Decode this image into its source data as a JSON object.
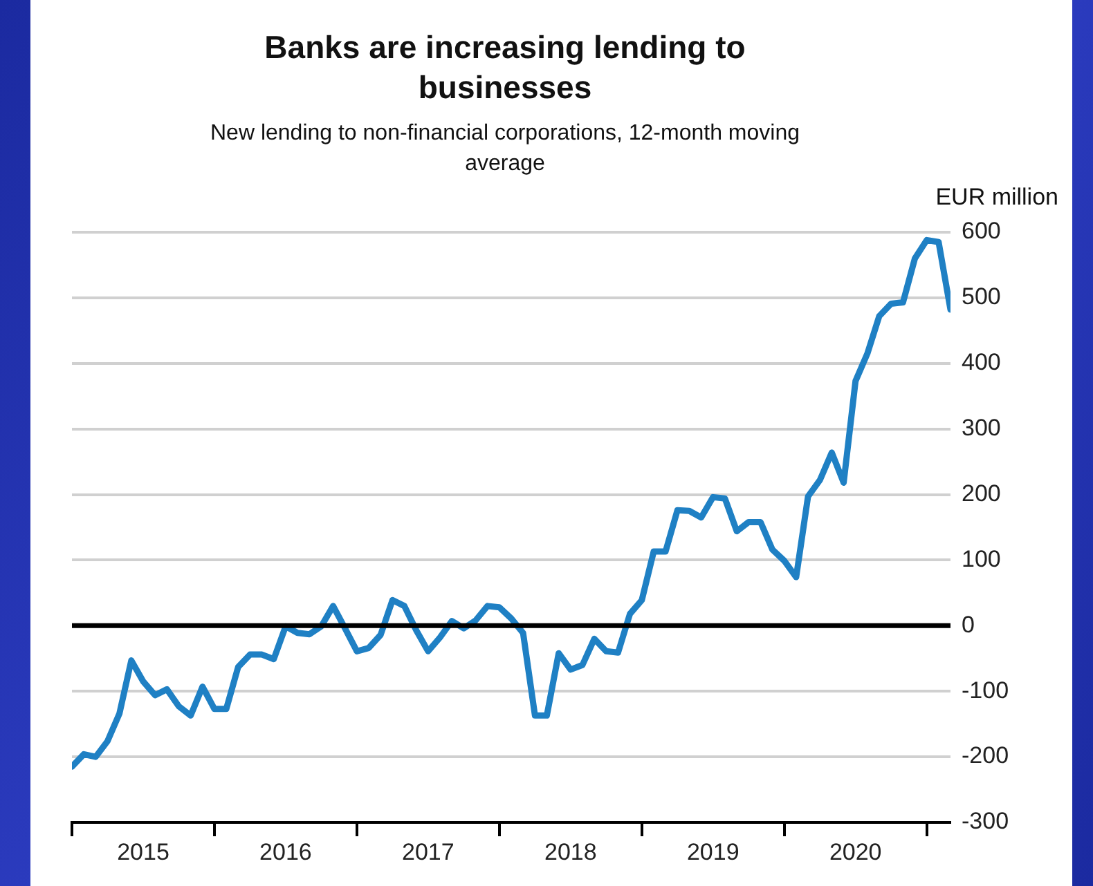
{
  "chart_data": {
    "type": "line",
    "title": "Banks are increasing lending to businesses",
    "subtitle": "New lending to non-financial corporations, 12-month moving average",
    "ylabel": "EUR million",
    "x": [
      "2015-01",
      "2015-02",
      "2015-03",
      "2015-04",
      "2015-05",
      "2015-06",
      "2015-07",
      "2015-08",
      "2015-09",
      "2015-10",
      "2015-11",
      "2015-12",
      "2016-01",
      "2016-02",
      "2016-03",
      "2016-04",
      "2016-05",
      "2016-06",
      "2016-07",
      "2016-08",
      "2016-09",
      "2016-10",
      "2016-11",
      "2016-12",
      "2017-01",
      "2017-02",
      "2017-03",
      "2017-04",
      "2017-05",
      "2017-06",
      "2017-07",
      "2017-08",
      "2017-09",
      "2017-10",
      "2017-11",
      "2017-12",
      "2018-01",
      "2018-02",
      "2018-03",
      "2018-04",
      "2018-05",
      "2018-06",
      "2018-07",
      "2018-08",
      "2018-09",
      "2018-10",
      "2018-11",
      "2018-12",
      "2019-01",
      "2019-02",
      "2019-03",
      "2019-04",
      "2019-05",
      "2019-06",
      "2019-07",
      "2019-08",
      "2019-09",
      "2019-10",
      "2019-11",
      "2019-12",
      "2020-01",
      "2020-02",
      "2020-03",
      "2020-04",
      "2020-05",
      "2020-06",
      "2020-07",
      "2020-08",
      "2020-09",
      "2020-10",
      "2020-11",
      "2020-12",
      "2021-01",
      "2021-02",
      "2021-03"
    ],
    "series": [
      {
        "color": "#1f80c4",
        "values": [
          -215,
          -196,
          -200,
          -176,
          -134,
          -53,
          -85,
          -106,
          -97,
          -123,
          -137,
          -93,
          -127,
          -127,
          -63,
          -44,
          -44,
          -51,
          -1,
          -11,
          -13,
          -1,
          30,
          -4,
          -39,
          -34,
          -14,
          39,
          30,
          -7,
          -39,
          -18,
          7,
          -4,
          8,
          30,
          28,
          11,
          -11,
          -137,
          -137,
          -42,
          -67,
          -60,
          -20,
          -39,
          -41,
          18,
          39,
          113,
          113,
          176,
          175,
          165,
          196,
          194,
          144,
          158,
          158,
          116,
          99,
          74,
          197,
          222,
          264,
          218,
          373,
          415,
          472,
          491,
          493,
          560,
          588,
          585,
          482
        ]
      }
    ],
    "xlim": [
      "2015-01",
      "2021-03"
    ],
    "xticks": [
      {
        "value": "2015-01",
        "label": null
      },
      {
        "value": "2015-07",
        "label": "2015"
      },
      {
        "value": "2016-01",
        "label": null
      },
      {
        "value": "2016-07",
        "label": "2016"
      },
      {
        "value": "2017-01",
        "label": null
      },
      {
        "value": "2017-07",
        "label": "2017"
      },
      {
        "value": "2018-01",
        "label": null
      },
      {
        "value": "2018-07",
        "label": "2018"
      },
      {
        "value": "2019-01",
        "label": null
      },
      {
        "value": "2019-07",
        "label": "2019"
      },
      {
        "value": "2020-01",
        "label": null
      },
      {
        "value": "2020-07",
        "label": "2020"
      },
      {
        "value": "2021-01",
        "label": null
      }
    ],
    "ylim": [
      -300,
      600
    ],
    "yticks": [
      -300,
      -200,
      -100,
      0,
      100,
      200,
      300,
      400,
      500,
      600
    ],
    "grid": "y",
    "legend": false,
    "marker": "none",
    "line_style": "solid",
    "ref_lines": [
      {
        "axis": "y",
        "value": 0,
        "color": "#000000"
      }
    ]
  }
}
